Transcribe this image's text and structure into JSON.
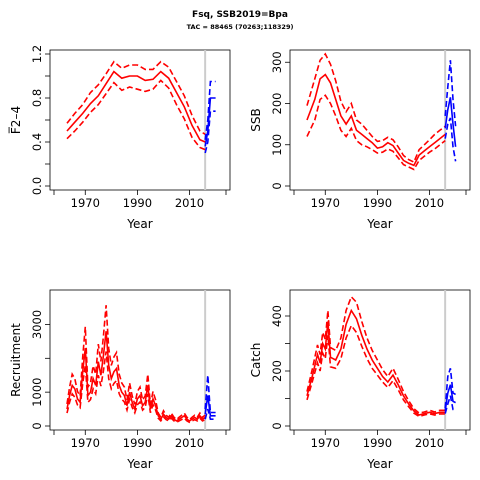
{
  "title": "Fsq, SSB2019=Bpa",
  "subtitle": "TAC = 88465 (70263;118329)",
  "colors": {
    "historical": "#ff0000",
    "projection": "#0000ff",
    "assessment_year_line": "#cccccc"
  },
  "chart_data": [
    {
      "id": "f",
      "type": "line",
      "ylabel": "F̅2–4",
      "xlabel": "Year",
      "xlim": [
        1958,
        2024
      ],
      "ylim": [
        0,
        1.2
      ],
      "xticks": [
        1970,
        1990,
        2010
      ],
      "yticks": [
        0,
        0.2,
        0.4,
        0.6,
        0.8,
        1.0,
        1.2
      ],
      "ytick_labels": [
        "0.0",
        "",
        "0.4",
        "",
        "0.8",
        "",
        "1.2"
      ],
      "assessment_year": 2016,
      "historical": {
        "x": [
          1963,
          1966,
          1969,
          1972,
          1975,
          1978,
          1981,
          1984,
          1987,
          1990,
          1993,
          1996,
          1999,
          2002,
          2005,
          2008,
          2011,
          2014,
          2016
        ],
        "median": [
          0.5,
          0.58,
          0.66,
          0.75,
          0.82,
          0.93,
          1.04,
          0.98,
          1.0,
          1.0,
          0.96,
          0.97,
          1.04,
          0.98,
          0.85,
          0.72,
          0.55,
          0.42,
          0.4
        ],
        "lower": [
          0.43,
          0.5,
          0.58,
          0.67,
          0.74,
          0.84,
          0.94,
          0.87,
          0.9,
          0.88,
          0.86,
          0.88,
          0.96,
          0.89,
          0.74,
          0.61,
          0.44,
          0.35,
          0.33
        ],
        "upper": [
          0.57,
          0.66,
          0.74,
          0.85,
          0.92,
          1.02,
          1.13,
          1.07,
          1.1,
          1.1,
          1.06,
          1.06,
          1.13,
          1.08,
          0.95,
          0.82,
          0.64,
          0.5,
          0.47
        ]
      },
      "projection": {
        "x": [
          2016,
          2017,
          2018,
          2019,
          2020
        ],
        "median": [
          0.36,
          0.5,
          0.8,
          0.8,
          0.8
        ],
        "lower": [
          0.3,
          0.4,
          0.68,
          0.68,
          0.68
        ],
        "upper": [
          0.42,
          0.6,
          0.95,
          0.95,
          0.95
        ]
      }
    },
    {
      "id": "ssb",
      "type": "line",
      "ylabel": "SSB",
      "xlabel": "Year",
      "xlim": [
        1958,
        2024
      ],
      "ylim": [
        0,
        320
      ],
      "xticks": [
        1970,
        1990,
        2010
      ],
      "yticks": [
        0,
        100,
        200,
        300
      ],
      "ytick_labels": [
        "0",
        "100",
        "200",
        "300"
      ],
      "assessment_year": 2016,
      "historical": {
        "x": [
          1963,
          1966,
          1968,
          1970,
          1972,
          1974,
          1976,
          1978,
          1980,
          1982,
          1984,
          1986,
          1988,
          1990,
          1992,
          1994,
          1996,
          1998,
          2000,
          2002,
          2004,
          2006,
          2008,
          2010,
          2012,
          2014,
          2016
        ],
        "median": [
          160,
          210,
          260,
          270,
          250,
          210,
          170,
          150,
          170,
          135,
          125,
          115,
          105,
          92,
          95,
          105,
          98,
          80,
          62,
          55,
          50,
          75,
          85,
          95,
          105,
          115,
          125
        ],
        "lower": [
          120,
          160,
          210,
          220,
          200,
          170,
          135,
          120,
          140,
          110,
          100,
          95,
          88,
          80,
          82,
          90,
          84,
          68,
          52,
          46,
          40,
          62,
          72,
          82,
          90,
          100,
          110
        ],
        "upper": [
          195,
          260,
          305,
          320,
          295,
          255,
          205,
          180,
          200,
          160,
          150,
          135,
          120,
          108,
          110,
          118,
          112,
          95,
          74,
          64,
          58,
          88,
          100,
          112,
          125,
          135,
          145
        ]
      },
      "projection": {
        "x": [
          2016,
          2017,
          2018,
          2019,
          2020
        ],
        "median": [
          140,
          185,
          215,
          150,
          95
        ],
        "lower": [
          115,
          150,
          165,
          95,
          60
        ],
        "upper": [
          170,
          240,
          305,
          210,
          145
        ]
      }
    },
    {
      "id": "recruitment",
      "type": "line",
      "ylabel": "Recruitment",
      "xlabel": "Year",
      "xlim": [
        1958,
        2024
      ],
      "ylim": [
        0,
        3900
      ],
      "xticks": [
        1970,
        1990,
        2010
      ],
      "yticks": [
        0,
        1000,
        2000,
        3000
      ],
      "ytick_labels": [
        "0",
        "1000",
        "",
        "3000"
      ],
      "assessment_year": 2016,
      "historical": {
        "x": [
          1963,
          1964,
          1965,
          1966,
          1967,
          1968,
          1969,
          1970,
          1971,
          1972,
          1973,
          1974,
          1975,
          1976,
          1977,
          1978,
          1979,
          1980,
          1981,
          1982,
          1983,
          1984,
          1985,
          1986,
          1987,
          1988,
          1989,
          1990,
          1991,
          1992,
          1993,
          1994,
          1995,
          1996,
          1997,
          1998,
          1999,
          2000,
          2001,
          2002,
          2003,
          2004,
          2005,
          2006,
          2007,
          2008,
          2009,
          2010,
          2011,
          2012,
          2013,
          2014,
          2015,
          2016
        ],
        "median": [
          500,
          900,
          1200,
          1100,
          800,
          700,
          1600,
          2300,
          900,
          1000,
          1400,
          1200,
          1900,
          1500,
          2100,
          2800,
          1800,
          1400,
          1600,
          1700,
          1200,
          1000,
          900,
          600,
          1000,
          700,
          500,
          800,
          900,
          600,
          700,
          1200,
          500,
          800,
          600,
          300,
          200,
          350,
          250,
          200,
          300,
          200,
          150,
          200,
          250,
          300,
          200,
          150,
          200,
          250,
          200,
          300,
          200,
          250
        ],
        "lower": [
          380,
          700,
          950,
          850,
          620,
          540,
          1250,
          1800,
          700,
          780,
          1100,
          950,
          1500,
          1180,
          1650,
          2200,
          1400,
          1100,
          1260,
          1340,
          950,
          790,
          710,
          470,
          790,
          550,
          390,
          630,
          710,
          470,
          550,
          950,
          390,
          630,
          470,
          230,
          150,
          270,
          190,
          150,
          230,
          150,
          110,
          150,
          190,
          230,
          150,
          110,
          150,
          190,
          150,
          230,
          150,
          190
        ],
        "upper": [
          650,
          1150,
          1530,
          1400,
          1020,
          890,
          2040,
          2930,
          1150,
          1270,
          1780,
          1530,
          2420,
          1910,
          2680,
          3570,
          2300,
          1790,
          2040,
          2170,
          1530,
          1270,
          1150,
          770,
          1270,
          890,
          640,
          1020,
          1150,
          770,
          890,
          1530,
          640,
          1020,
          770,
          380,
          260,
          450,
          320,
          260,
          380,
          260,
          190,
          260,
          320,
          380,
          260,
          190,
          260,
          320,
          260,
          380,
          260,
          320
        ]
      },
      "projection": {
        "x": [
          2016,
          2017,
          2018,
          2019,
          2020
        ],
        "median": [
          350,
          900,
          300,
          300,
          300
        ],
        "lower": [
          200,
          500,
          200,
          200,
          200
        ],
        "upper": [
          500,
          1500,
          400,
          400,
          400
        ]
      }
    },
    {
      "id": "catch",
      "type": "line",
      "ylabel": "Catch",
      "xlabel": "Year",
      "xlim": [
        1958,
        2024
      ],
      "ylim": [
        0,
        480
      ],
      "xticks": [
        1970,
        1990,
        2010
      ],
      "yticks": [
        0,
        100,
        200,
        300,
        400
      ],
      "ytick_labels": [
        "0",
        "",
        "200",
        "",
        "400"
      ],
      "assessment_year": 2016,
      "historical": {
        "x": [
          1963,
          1965,
          1967,
          1968,
          1969,
          1970,
          1971,
          1972,
          1974,
          1976,
          1978,
          1980,
          1982,
          1984,
          1986,
          1988,
          1990,
          1992,
          1994,
          1996,
          1998,
          2000,
          2002,
          2004,
          2006,
          2008,
          2010,
          2012,
          2014,
          2016
        ],
        "median": [
          110,
          180,
          260,
          230,
          300,
          280,
          380,
          250,
          240,
          280,
          370,
          420,
          390,
          330,
          280,
          240,
          210,
          180,
          160,
          185,
          150,
          110,
          80,
          55,
          40,
          45,
          50,
          45,
          50,
          50
        ],
        "lower": [
          95,
          160,
          230,
          200,
          265,
          245,
          330,
          215,
          210,
          245,
          320,
          365,
          340,
          290,
          245,
          210,
          185,
          160,
          140,
          165,
          132,
          95,
          70,
          47,
          35,
          40,
          44,
          40,
          44,
          44
        ],
        "upper": [
          125,
          205,
          295,
          260,
          340,
          315,
          420,
          285,
          275,
          320,
          420,
          470,
          450,
          380,
          320,
          275,
          240,
          205,
          180,
          210,
          170,
          125,
          92,
          63,
          47,
          51,
          57,
          51,
          57,
          57
        ]
      },
      "projection": {
        "x": [
          2016,
          2017,
          2018,
          2019,
          2020
        ],
        "median": [
          55,
          120,
          150,
          90,
          85
        ],
        "lower": [
          45,
          80,
          110,
          60,
          55
        ],
        "upper": [
          65,
          180,
          210,
          120,
          115
        ]
      }
    }
  ]
}
